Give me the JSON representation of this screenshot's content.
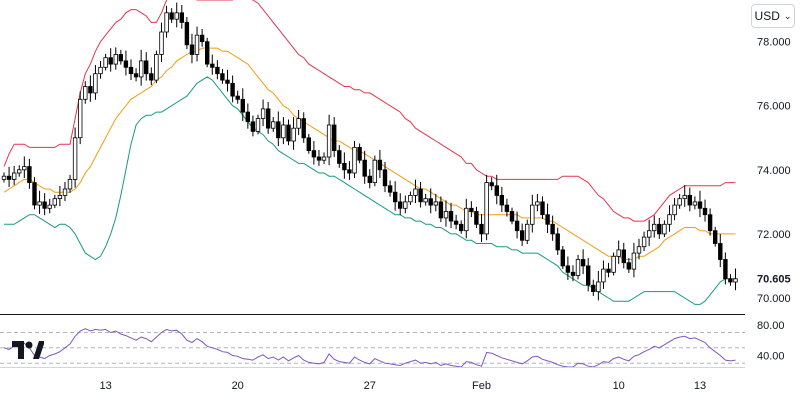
{
  "currency": {
    "label": "USD",
    "icon": "chevron-down-icon"
  },
  "logo": {
    "name": "TradingView",
    "icon": "tradingview-logo-icon"
  },
  "colors": {
    "candle": "#000000",
    "upper_band": "#e8334a",
    "middle_band": "#f39c12",
    "lower_band": "#169b7f",
    "rsi": "#7e57c2",
    "grid": "#b2b5be",
    "axis_text": "#131722"
  },
  "chart_data": [
    {
      "type": "candlestick",
      "title": "",
      "ylim": [
        69.5,
        79.3
      ],
      "yticks": [
        70,
        72,
        74,
        76,
        78
      ],
      "ytick_labels": [
        "70.000",
        "72.000",
        "74.000",
        "76.000",
        "78.000"
      ],
      "last_price_label": "70.605",
      "last_price": 70.605,
      "x_tick_labels": [
        {
          "index": 20,
          "label": "13"
        },
        {
          "index": 46,
          "label": "20"
        },
        {
          "index": 72,
          "label": "27"
        },
        {
          "index": 94,
          "label": "Feb"
        },
        {
          "index": 121,
          "label": "10"
        },
        {
          "index": 137,
          "label": "13"
        }
      ],
      "close": [
        73.8,
        73.7,
        73.9,
        74.0,
        74.1,
        73.6,
        72.9,
        73.0,
        72.8,
        72.9,
        73.1,
        73.2,
        73.4,
        73.7,
        75.0,
        76.2,
        76.6,
        76.4,
        77.0,
        77.2,
        77.5,
        77.3,
        77.6,
        77.4,
        77.2,
        77.0,
        76.9,
        77.4,
        77.0,
        76.8,
        77.6,
        78.3,
        78.9,
        78.7,
        78.9,
        78.6,
        77.9,
        77.6,
        78.2,
        78.0,
        77.3,
        77.2,
        77.0,
        76.8,
        76.7,
        76.3,
        76.2,
        75.8,
        75.5,
        75.2,
        75.6,
        75.9,
        75.3,
        75.5,
        75.0,
        75.4,
        74.9,
        75.3,
        75.6,
        75.0,
        74.6,
        74.4,
        74.3,
        74.4,
        75.4,
        74.6,
        74.2,
        74.0,
        73.9,
        74.7,
        74.3,
        73.8,
        73.6,
        74.3,
        74.0,
        73.5,
        73.3,
        73.0,
        72.8,
        73.0,
        73.2,
        73.4,
        73.0,
        73.1,
        72.9,
        73.0,
        72.5,
        72.7,
        72.4,
        72.3,
        72.1,
        72.8,
        72.7,
        72.3,
        72.0,
        73.6,
        73.5,
        73.2,
        72.9,
        72.7,
        72.4,
        72.1,
        71.8,
        72.3,
        72.9,
        73.0,
        72.6,
        72.3,
        72.0,
        71.5,
        71.0,
        70.8,
        70.7,
        71.2,
        71.0,
        70.4,
        70.2,
        70.5,
        70.9,
        70.8,
        71.3,
        71.5,
        71.1,
        70.9,
        71.4,
        71.6,
        71.9,
        72.1,
        72.3,
        72.0,
        72.3,
        72.6,
        72.9,
        73.1,
        73.2,
        72.9,
        73.0,
        72.8,
        72.6,
        72.1,
        71.7,
        71.2,
        70.6,
        70.5,
        70.6
      ],
      "upper_band": [
        74.1,
        74.5,
        74.8,
        74.8,
        74.8,
        74.7,
        74.7,
        74.7,
        74.7,
        74.7,
        74.7,
        74.8,
        74.8,
        74.8,
        75.6,
        76.4,
        77.0,
        77.3,
        77.7,
        78.0,
        78.2,
        78.4,
        78.6,
        78.7,
        78.9,
        79.0,
        79.0,
        78.9,
        78.8,
        78.6,
        78.6,
        78.9,
        79.3,
        79.4,
        79.5,
        79.5,
        79.4,
        79.4,
        79.3,
        79.3,
        79.3,
        79.3,
        79.3,
        79.3,
        79.3,
        79.3,
        79.4,
        79.4,
        79.4,
        79.3,
        79.2,
        79.0,
        78.8,
        78.6,
        78.4,
        78.2,
        78.0,
        77.8,
        77.6,
        77.5,
        77.3,
        77.2,
        77.1,
        77.0,
        76.9,
        76.8,
        76.7,
        76.6,
        76.6,
        76.5,
        76.5,
        76.4,
        76.4,
        76.3,
        76.2,
        76.1,
        76.0,
        75.9,
        75.8,
        75.6,
        75.5,
        75.3,
        75.2,
        75.1,
        75.0,
        74.9,
        74.8,
        74.7,
        74.6,
        74.5,
        74.4,
        74.2,
        74.2,
        74.0,
        73.9,
        73.8,
        73.8,
        73.7,
        73.7,
        73.7,
        73.7,
        73.7,
        73.7,
        73.7,
        73.7,
        73.7,
        73.7,
        73.7,
        73.7,
        73.7,
        73.8,
        73.8,
        73.8,
        73.8,
        73.7,
        73.6,
        73.4,
        73.2,
        73.1,
        72.9,
        72.7,
        72.6,
        72.5,
        72.5,
        72.4,
        72.4,
        72.4,
        72.5,
        72.6,
        72.8,
        73.0,
        73.2,
        73.3,
        73.4,
        73.5,
        73.5,
        73.5,
        73.5,
        73.5,
        73.5,
        73.5,
        73.5,
        73.6,
        73.6,
        73.6
      ],
      "middle_band": [
        73.3,
        73.4,
        73.5,
        73.6,
        73.7,
        73.7,
        73.6,
        73.5,
        73.4,
        73.4,
        73.3,
        73.3,
        73.3,
        73.3,
        73.4,
        73.6,
        73.9,
        74.1,
        74.4,
        74.7,
        75.0,
        75.3,
        75.6,
        75.8,
        76.0,
        76.2,
        76.3,
        76.4,
        76.5,
        76.6,
        76.8,
        76.9,
        77.1,
        77.2,
        77.4,
        77.5,
        77.6,
        77.7,
        77.7,
        77.8,
        77.8,
        77.8,
        77.8,
        77.7,
        77.7,
        77.6,
        77.5,
        77.4,
        77.3,
        77.1,
        76.9,
        76.7,
        76.5,
        76.4,
        76.2,
        76.0,
        75.9,
        75.7,
        75.6,
        75.5,
        75.4,
        75.3,
        75.2,
        75.1,
        75.0,
        74.9,
        74.9,
        74.8,
        74.7,
        74.6,
        74.6,
        74.5,
        74.4,
        74.3,
        74.2,
        74.1,
        74.0,
        73.9,
        73.8,
        73.7,
        73.6,
        73.5,
        73.4,
        73.4,
        73.3,
        73.2,
        73.1,
        73.0,
        72.9,
        72.9,
        72.8,
        72.7,
        72.7,
        72.6,
        72.6,
        72.6,
        72.6,
        72.6,
        72.6,
        72.6,
        72.6,
        72.6,
        72.5,
        72.5,
        72.5,
        72.5,
        72.5,
        72.4,
        72.4,
        72.3,
        72.2,
        72.1,
        72.0,
        71.9,
        71.8,
        71.7,
        71.6,
        71.5,
        71.4,
        71.3,
        71.3,
        71.3,
        71.2,
        71.2,
        71.2,
        71.3,
        71.3,
        71.4,
        71.5,
        71.6,
        71.8,
        71.9,
        72.0,
        72.1,
        72.2,
        72.2,
        72.2,
        72.1,
        72.1,
        72.0,
        72.0,
        72.0,
        72.0,
        72.0,
        72.0
      ],
      "lower_band": [
        72.3,
        72.3,
        72.3,
        72.4,
        72.5,
        72.6,
        72.6,
        72.5,
        72.4,
        72.3,
        72.2,
        72.3,
        72.3,
        72.2,
        72.0,
        71.7,
        71.4,
        71.3,
        71.2,
        71.3,
        71.6,
        72.0,
        72.5,
        73.2,
        74.0,
        74.8,
        75.4,
        75.6,
        75.7,
        75.7,
        75.8,
        75.8,
        75.9,
        76.0,
        76.1,
        76.2,
        76.3,
        76.5,
        76.7,
        76.8,
        76.9,
        76.8,
        76.6,
        76.4,
        76.2,
        76.0,
        75.9,
        75.7,
        75.5,
        75.3,
        75.2,
        75.1,
        74.9,
        74.8,
        74.6,
        74.5,
        74.4,
        74.3,
        74.2,
        74.2,
        74.1,
        74.0,
        73.9,
        73.9,
        73.8,
        73.8,
        73.7,
        73.6,
        73.5,
        73.4,
        73.3,
        73.2,
        73.1,
        73.0,
        72.9,
        72.8,
        72.7,
        72.6,
        72.6,
        72.5,
        72.5,
        72.4,
        72.4,
        72.3,
        72.3,
        72.2,
        72.2,
        72.1,
        72.0,
        72.0,
        71.9,
        71.8,
        71.8,
        71.7,
        71.7,
        71.7,
        71.7,
        71.6,
        71.6,
        71.6,
        71.5,
        71.5,
        71.4,
        71.4,
        71.4,
        71.4,
        71.3,
        71.2,
        71.1,
        71.0,
        70.8,
        70.7,
        70.6,
        70.5,
        70.4,
        70.4,
        70.3,
        70.2,
        70.1,
        70.0,
        69.9,
        69.9,
        69.9,
        69.9,
        70.0,
        70.1,
        70.2,
        70.2,
        70.2,
        70.2,
        70.2,
        70.2,
        70.2,
        70.1,
        70.0,
        69.9,
        69.8,
        69.8,
        69.9,
        70.1,
        70.3,
        70.5,
        70.6,
        70.6,
        70.6
      ]
    },
    {
      "type": "line",
      "title": "",
      "ylim": [
        25,
        85
      ],
      "yticks": [
        40,
        80
      ],
      "ytick_labels": [
        "40.00",
        "80.00"
      ],
      "reference_lines": [
        70,
        50,
        30
      ],
      "rsi": [
        50,
        48,
        52,
        55,
        56,
        50,
        40,
        38,
        36,
        40,
        42,
        45,
        50,
        55,
        65,
        72,
        75,
        72,
        74,
        73,
        74,
        70,
        72,
        68,
        66,
        63,
        60,
        64,
        62,
        58,
        64,
        70,
        74,
        72,
        73,
        68,
        60,
        57,
        62,
        58,
        52,
        50,
        48,
        45,
        44,
        40,
        39,
        36,
        35,
        34,
        38,
        41,
        36,
        38,
        34,
        38,
        33,
        37,
        40,
        34,
        31,
        30,
        29,
        31,
        42,
        35,
        32,
        31,
        30,
        38,
        34,
        31,
        29,
        36,
        33,
        30,
        29,
        28,
        27,
        30,
        32,
        34,
        30,
        31,
        29,
        31,
        27,
        29,
        27,
        26,
        25,
        32,
        31,
        28,
        26,
        44,
        43,
        40,
        37,
        35,
        33,
        31,
        29,
        33,
        38,
        39,
        35,
        33,
        31,
        28,
        26,
        25,
        25,
        30,
        29,
        26,
        25,
        28,
        32,
        31,
        36,
        38,
        35,
        33,
        39,
        41,
        45,
        48,
        52,
        50,
        54,
        58,
        62,
        64,
        65,
        62,
        63,
        60,
        57,
        50,
        45,
        40,
        34,
        33,
        34
      ]
    }
  ]
}
